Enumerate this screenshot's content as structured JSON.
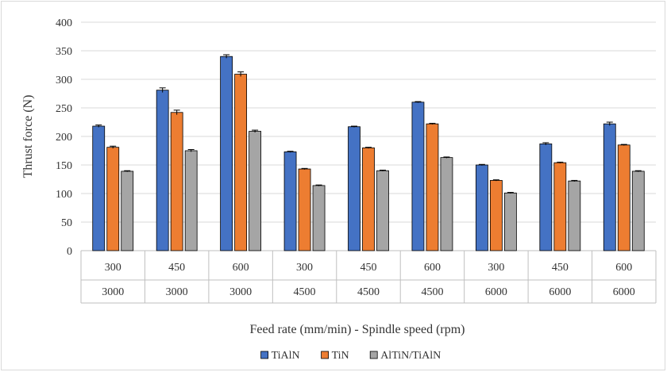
{
  "chart_data": {
    "type": "bar",
    "xlabel": "Feed rate (mm/min) - Spindle speed (rpm)",
    "ylabel": "Thrust force (N)",
    "ylim": [
      0,
      400
    ],
    "yticks": [
      0,
      50,
      100,
      150,
      200,
      250,
      300,
      350,
      400
    ],
    "grid": true,
    "legend_position": "bottom",
    "categories": [
      {
        "feed": "300",
        "speed": "3000"
      },
      {
        "feed": "450",
        "speed": "3000"
      },
      {
        "feed": "600",
        "speed": "3000"
      },
      {
        "feed": "300",
        "speed": "4500"
      },
      {
        "feed": "450",
        "speed": "4500"
      },
      {
        "feed": "600",
        "speed": "4500"
      },
      {
        "feed": "300",
        "speed": "6000"
      },
      {
        "feed": "450",
        "speed": "6000"
      },
      {
        "feed": "600",
        "speed": "6000"
      }
    ],
    "series": [
      {
        "name": "TiAlN",
        "color": "#4472c4",
        "values": [
          218,
          281,
          340,
          173,
          217,
          260,
          150,
          187,
          222
        ],
        "errors": [
          2,
          4,
          3,
          1,
          1,
          1,
          1,
          2,
          3
        ]
      },
      {
        "name": "TiN",
        "color": "#ed7d31",
        "values": [
          181,
          242,
          309,
          143,
          180,
          222,
          123,
          154,
          185
        ],
        "errors": [
          2,
          4,
          4,
          1,
          1,
          1,
          1,
          1,
          1
        ]
      },
      {
        "name": "AlTiN/TiAlN",
        "color": "#a5a5a5",
        "values": [
          139,
          175,
          209,
          114,
          140,
          163,
          101,
          122,
          139
        ],
        "errors": [
          1,
          2,
          2,
          1,
          1,
          1,
          1,
          1,
          1
        ]
      }
    ]
  }
}
